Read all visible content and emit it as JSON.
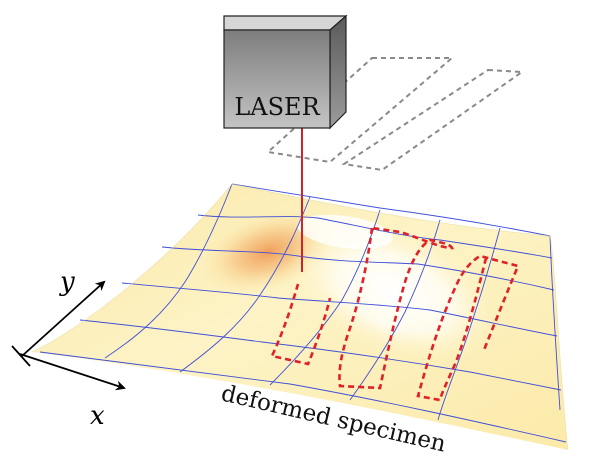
{
  "laser": {
    "label": "LASER"
  },
  "axes": {
    "x_label": "x",
    "y_label": "y"
  },
  "specimen": {
    "label": "deformed specimen"
  },
  "colors": {
    "surface_light": "#fdf4c4",
    "surface_hot": "#f2a866",
    "grid_line": "#3f4fd8",
    "laser_beam": "#d2232a",
    "scan_path_deformed": "#e0202a",
    "scan_path_flat": "#8a8a8a",
    "laser_box_front": "#9a9a9a",
    "laser_box_top": "#d6d6d6",
    "laser_box_side": "#6f6f6f"
  }
}
